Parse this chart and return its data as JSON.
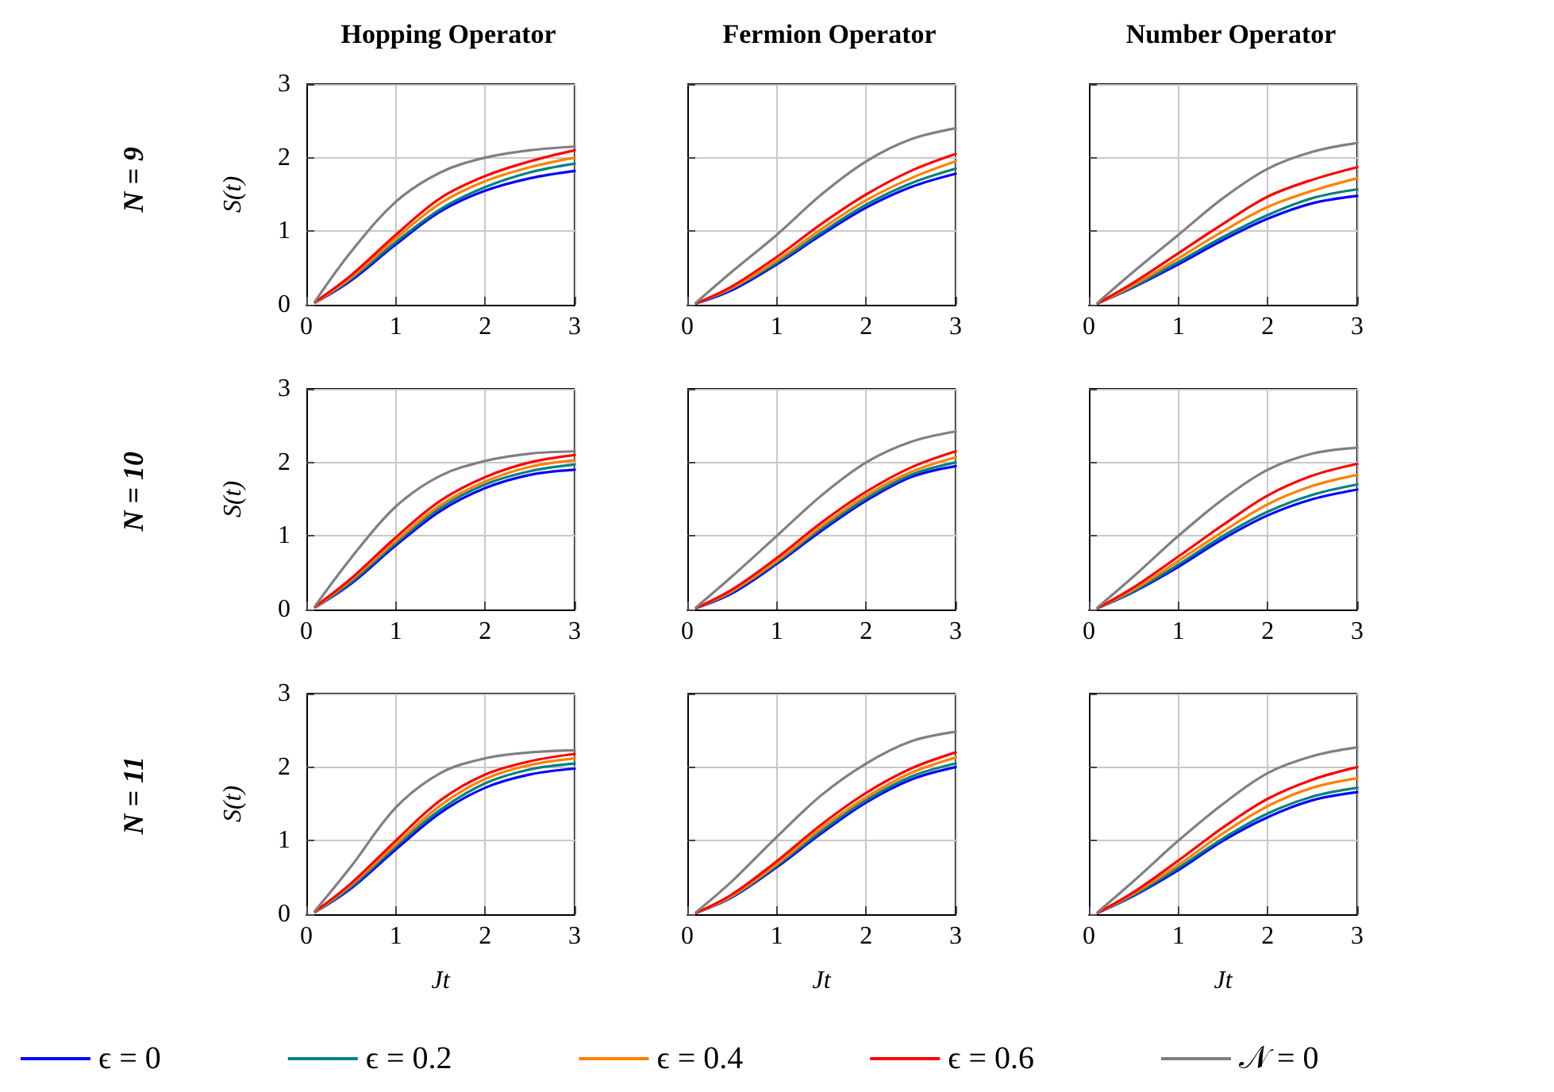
{
  "chart_data": [
    {
      "type": "line",
      "title": "Hopping Operator",
      "ylabel": "S(t)",
      "annotations": [
        "N = 9"
      ],
      "x": [
        0.1,
        0.5,
        1,
        1.5,
        2,
        2.5,
        3
      ],
      "xlim": [
        0,
        3
      ],
      "ylim": [
        0,
        3
      ],
      "xticks": [
        0,
        1,
        2,
        3
      ],
      "yticks": [
        0,
        1,
        2,
        3
      ],
      "grid": true,
      "marker": "none",
      "series": [
        {
          "color": "#0000ff",
          "values": [
            0.03,
            0.33,
            0.82,
            1.27,
            1.55,
            1.72,
            1.82
          ]
        },
        {
          "color": "#008080",
          "values": [
            0.03,
            0.35,
            0.85,
            1.3,
            1.6,
            1.8,
            1.92
          ]
        },
        {
          "color": "#ff8000",
          "values": [
            0.03,
            0.37,
            0.9,
            1.38,
            1.68,
            1.87,
            2.0
          ]
        },
        {
          "color": "#ff0000",
          "values": [
            0.04,
            0.4,
            0.95,
            1.45,
            1.75,
            1.95,
            2.1
          ]
        },
        {
          "color": "#808080",
          "values": [
            0.05,
            0.72,
            1.4,
            1.8,
            2.0,
            2.1,
            2.15
          ]
        }
      ]
    },
    {
      "type": "line",
      "title": "Fermion Operator",
      "x": [
        0.1,
        0.5,
        1,
        1.5,
        2,
        2.5,
        3
      ],
      "xlim": [
        0,
        3
      ],
      "ylim": [
        0,
        3
      ],
      "xticks": [
        0,
        1,
        2,
        3
      ],
      "yticks": [
        0,
        1,
        2,
        3
      ],
      "grid": true,
      "marker": "none",
      "tick_labels": "x",
      "series": [
        {
          "color": "#0000ff",
          "values": [
            0.02,
            0.2,
            0.55,
            0.95,
            1.32,
            1.6,
            1.78
          ]
        },
        {
          "color": "#008080",
          "values": [
            0.02,
            0.22,
            0.57,
            0.98,
            1.36,
            1.65,
            1.85
          ]
        },
        {
          "color": "#ff8000",
          "values": [
            0.02,
            0.23,
            0.6,
            1.03,
            1.42,
            1.72,
            1.95
          ]
        },
        {
          "color": "#ff0000",
          "values": [
            0.02,
            0.25,
            0.65,
            1.1,
            1.5,
            1.82,
            2.05
          ]
        },
        {
          "color": "#808080",
          "values": [
            0.03,
            0.45,
            0.95,
            1.5,
            1.95,
            2.25,
            2.4
          ]
        }
      ]
    },
    {
      "type": "line",
      "title": "Number Operator",
      "x": [
        0.1,
        0.5,
        1,
        1.5,
        2,
        2.5,
        3
      ],
      "xlim": [
        0,
        3
      ],
      "ylim": [
        0,
        3
      ],
      "xticks": [
        0,
        1,
        2,
        3
      ],
      "yticks": [
        0,
        1,
        2,
        3
      ],
      "grid": true,
      "marker": "none",
      "tick_labels": "x",
      "series": [
        {
          "color": "#0000ff",
          "values": [
            0.02,
            0.24,
            0.55,
            0.88,
            1.17,
            1.38,
            1.48
          ]
        },
        {
          "color": "#008080",
          "values": [
            0.02,
            0.25,
            0.58,
            0.92,
            1.22,
            1.45,
            1.57
          ]
        },
        {
          "color": "#ff8000",
          "values": [
            0.02,
            0.27,
            0.63,
            1.0,
            1.33,
            1.55,
            1.72
          ]
        },
        {
          "color": "#ff0000",
          "values": [
            0.02,
            0.3,
            0.7,
            1.1,
            1.47,
            1.7,
            1.87
          ]
        },
        {
          "color": "#808080",
          "values": [
            0.03,
            0.45,
            0.95,
            1.45,
            1.85,
            2.08,
            2.2
          ]
        }
      ]
    },
    {
      "type": "line",
      "ylabel": "S(t)",
      "annotations": [
        "N = 10"
      ],
      "x": [
        0.1,
        0.5,
        1,
        1.5,
        2,
        2.5,
        3
      ],
      "xlim": [
        0,
        3
      ],
      "ylim": [
        0,
        3
      ],
      "xticks": [
        0,
        1,
        2,
        3
      ],
      "yticks": [
        0,
        1,
        2,
        3
      ],
      "grid": true,
      "marker": "none",
      "series": [
        {
          "color": "#0000ff",
          "values": [
            0.03,
            0.35,
            0.87,
            1.34,
            1.65,
            1.83,
            1.9
          ]
        },
        {
          "color": "#008080",
          "values": [
            0.03,
            0.37,
            0.9,
            1.38,
            1.7,
            1.88,
            1.97
          ]
        },
        {
          "color": "#ff8000",
          "values": [
            0.03,
            0.4,
            0.93,
            1.42,
            1.74,
            1.94,
            2.03
          ]
        },
        {
          "color": "#ff0000",
          "values": [
            0.04,
            0.42,
            0.98,
            1.48,
            1.8,
            2.0,
            2.1
          ]
        },
        {
          "color": "#808080",
          "values": [
            0.05,
            0.7,
            1.4,
            1.82,
            2.02,
            2.12,
            2.15
          ]
        }
      ]
    },
    {
      "type": "line",
      "x": [
        0.1,
        0.5,
        1,
        1.5,
        2,
        2.5,
        3
      ],
      "xlim": [
        0,
        3
      ],
      "ylim": [
        0,
        3
      ],
      "xticks": [
        0,
        1,
        2,
        3
      ],
      "yticks": [
        0,
        1,
        2,
        3
      ],
      "grid": true,
      "marker": "none",
      "tick_labels": "x",
      "series": [
        {
          "color": "#0000ff",
          "values": [
            0.02,
            0.22,
            0.62,
            1.07,
            1.48,
            1.8,
            1.95
          ]
        },
        {
          "color": "#008080",
          "values": [
            0.02,
            0.24,
            0.64,
            1.1,
            1.51,
            1.83,
            2.0
          ]
        },
        {
          "color": "#ff8000",
          "values": [
            0.02,
            0.25,
            0.66,
            1.13,
            1.55,
            1.87,
            2.07
          ]
        },
        {
          "color": "#ff0000",
          "values": [
            0.02,
            0.27,
            0.7,
            1.18,
            1.6,
            1.93,
            2.15
          ]
        },
        {
          "color": "#808080",
          "values": [
            0.03,
            0.45,
            1.0,
            1.55,
            2.0,
            2.28,
            2.42
          ]
        }
      ]
    },
    {
      "type": "line",
      "x": [
        0.1,
        0.5,
        1,
        1.5,
        2,
        2.5,
        3
      ],
      "xlim": [
        0,
        3
      ],
      "ylim": [
        0,
        3
      ],
      "xticks": [
        0,
        1,
        2,
        3
      ],
      "yticks": [
        0,
        1,
        2,
        3
      ],
      "grid": true,
      "marker": "none",
      "tick_labels": "x",
      "series": [
        {
          "color": "#0000ff",
          "values": [
            0.02,
            0.24,
            0.58,
            0.96,
            1.28,
            1.5,
            1.63
          ]
        },
        {
          "color": "#008080",
          "values": [
            0.02,
            0.25,
            0.61,
            1.0,
            1.33,
            1.56,
            1.7
          ]
        },
        {
          "color": "#ff8000",
          "values": [
            0.02,
            0.27,
            0.66,
            1.06,
            1.43,
            1.68,
            1.83
          ]
        },
        {
          "color": "#ff0000",
          "values": [
            0.02,
            0.3,
            0.72,
            1.15,
            1.55,
            1.82,
            1.98
          ]
        },
        {
          "color": "#808080",
          "values": [
            0.03,
            0.45,
            1.0,
            1.5,
            1.9,
            2.12,
            2.2
          ]
        }
      ]
    },
    {
      "type": "line",
      "ylabel": "S(t)",
      "xlabel": "Jt",
      "annotations": [
        "N = 11"
      ],
      "x": [
        0.1,
        0.5,
        1,
        1.5,
        2,
        2.5,
        3
      ],
      "xlim": [
        0,
        3
      ],
      "ylim": [
        0,
        3
      ],
      "xticks": [
        0,
        1,
        2,
        3
      ],
      "yticks": [
        0,
        1,
        2,
        3
      ],
      "grid": true,
      "marker": "none",
      "series": [
        {
          "color": "#0000ff",
          "values": [
            0.03,
            0.35,
            0.88,
            1.38,
            1.72,
            1.9,
            1.98
          ]
        },
        {
          "color": "#008080",
          "values": [
            0.03,
            0.37,
            0.92,
            1.42,
            1.78,
            1.97,
            2.05
          ]
        },
        {
          "color": "#ff8000",
          "values": [
            0.03,
            0.4,
            0.95,
            1.48,
            1.84,
            2.03,
            2.12
          ]
        },
        {
          "color": "#ff0000",
          "values": [
            0.04,
            0.42,
            1.0,
            1.55,
            1.9,
            2.08,
            2.18
          ]
        },
        {
          "color": "#808080",
          "values": [
            0.05,
            0.65,
            1.45,
            1.92,
            2.12,
            2.2,
            2.23
          ]
        }
      ]
    },
    {
      "type": "line",
      "xlabel": "Jt",
      "x": [
        0.1,
        0.5,
        1,
        1.5,
        2,
        2.5,
        3
      ],
      "xlim": [
        0,
        3
      ],
      "ylim": [
        0,
        3
      ],
      "xticks": [
        0,
        1,
        2,
        3
      ],
      "yticks": [
        0,
        1,
        2,
        3
      ],
      "grid": true,
      "marker": "none",
      "tick_labels": "x",
      "series": [
        {
          "color": "#0000ff",
          "values": [
            0.02,
            0.23,
            0.64,
            1.1,
            1.52,
            1.83,
            2.0
          ]
        },
        {
          "color": "#008080",
          "values": [
            0.02,
            0.24,
            0.66,
            1.13,
            1.55,
            1.87,
            2.05
          ]
        },
        {
          "color": "#ff8000",
          "values": [
            0.02,
            0.25,
            0.68,
            1.17,
            1.59,
            1.92,
            2.13
          ]
        },
        {
          "color": "#ff0000",
          "values": [
            0.02,
            0.27,
            0.72,
            1.22,
            1.65,
            1.98,
            2.2
          ]
        },
        {
          "color": "#808080",
          "values": [
            0.03,
            0.45,
            1.05,
            1.62,
            2.05,
            2.35,
            2.48
          ]
        }
      ]
    },
    {
      "type": "line",
      "xlabel": "Jt",
      "x": [
        0.1,
        0.5,
        1,
        1.5,
        2,
        2.5,
        3
      ],
      "xlim": [
        0,
        3
      ],
      "ylim": [
        0,
        3
      ],
      "xticks": [
        0,
        1,
        2,
        3
      ],
      "yticks": [
        0,
        1,
        2,
        3
      ],
      "grid": true,
      "marker": "none",
      "tick_labels": "x",
      "legend": "bottom",
      "series": [
        {
          "name": "ϵ = 0",
          "color": "#0000ff",
          "values": [
            0.02,
            0.25,
            0.6,
            1.0,
            1.32,
            1.55,
            1.66
          ]
        },
        {
          "name": "ϵ = 0.2",
          "color": "#008080",
          "values": [
            0.02,
            0.26,
            0.63,
            1.03,
            1.37,
            1.6,
            1.72
          ]
        },
        {
          "name": "ϵ = 0.4",
          "color": "#ff8000",
          "values": [
            0.02,
            0.28,
            0.67,
            1.1,
            1.47,
            1.72,
            1.85
          ]
        },
        {
          "name": "ϵ = 0.6",
          "color": "#ff0000",
          "values": [
            0.02,
            0.3,
            0.73,
            1.18,
            1.57,
            1.83,
            2.0
          ]
        },
        {
          "name": "𝒩 = 0",
          "color": "#808080",
          "values": [
            0.03,
            0.45,
            1.0,
            1.5,
            1.92,
            2.15,
            2.27
          ]
        }
      ]
    }
  ]
}
